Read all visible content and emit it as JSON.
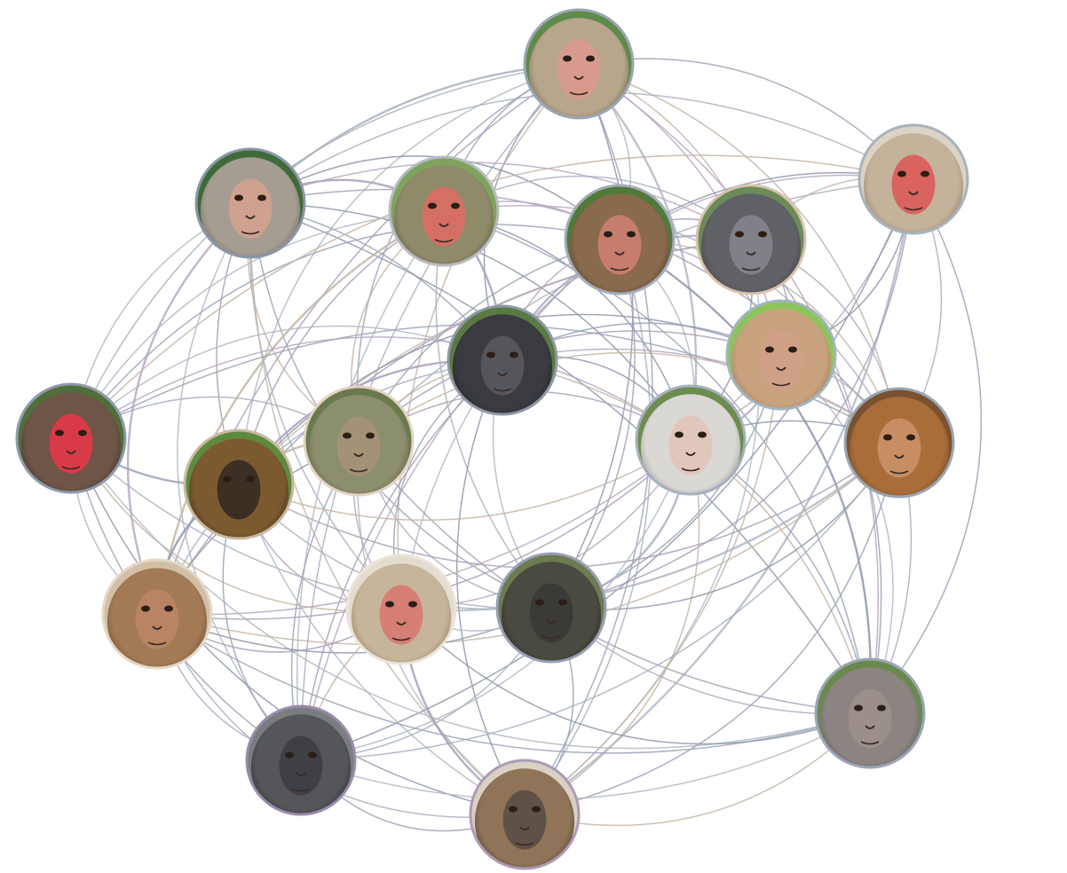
{
  "network": {
    "node_count": 19,
    "nodes": [
      {
        "id": "n1",
        "label": "",
        "fur": "#b7a68c",
        "face": "#d79a8e",
        "bg": "#5f8a4a",
        "ring": "#9aa5b2",
        "shade": "#6b5a46"
      },
      {
        "id": "n2",
        "label": "",
        "fur": "#a59d92",
        "face": "#cfa18f",
        "bg": "#3f6b3a",
        "ring": "#8a96a8",
        "shade": "#6a6258"
      },
      {
        "id": "n3",
        "label": "",
        "fur": "#8e8a6a",
        "face": "#d46f63",
        "bg": "#7fa35c",
        "ring": "#b8bcc0",
        "shade": "#5d5a45"
      },
      {
        "id": "n4",
        "label": "",
        "fur": "#8a6a4c",
        "face": "#c77d6e",
        "bg": "#4f7a3a",
        "ring": "#a4acb8",
        "shade": "#4e3c2c"
      },
      {
        "id": "n5",
        "label": "",
        "fur": "#5f6167",
        "face": "#7f8088",
        "bg": "#6d8b58",
        "ring": "#d9c2ae",
        "shade": "#3e4046"
      },
      {
        "id": "n6",
        "label": "",
        "fur": "#c4b29a",
        "face": "#d9635e",
        "bg": "#dcd3c6",
        "ring": "#a7b3bc",
        "shade": "#8a7866"
      },
      {
        "id": "n7",
        "label": "",
        "fur": "#3a3b40",
        "face": "#55565c",
        "bg": "#5a7a44",
        "ring": "#8f97a6",
        "shade": "#1f2024"
      },
      {
        "id": "n8",
        "label": "",
        "fur": "#c8a27e",
        "face": "#cf9f86",
        "bg": "#8cc45c",
        "ring": "#a2b4bf",
        "shade": "#9b7658"
      },
      {
        "id": "n9",
        "label": "",
        "fur": "#6e5548",
        "face": "#d93a48",
        "bg": "#4f6e3a",
        "ring": "#8f9aaa",
        "shade": "#3f2e24"
      },
      {
        "id": "n10",
        "label": "",
        "fur": "#8c8f6d",
        "face": "#a39277",
        "bg": "#6a7a4c",
        "ring": "#e3d3c4",
        "shade": "#5b5a42"
      },
      {
        "id": "n11",
        "label": "",
        "fur": "#7b5a30",
        "face": "#3c3024",
        "bg": "#5e8a3e",
        "ring": "#c9b8a3",
        "shade": "#3c2a18"
      },
      {
        "id": "n12",
        "label": "",
        "fur": "#d9d8d5",
        "face": "#e0c6bb",
        "bg": "#6d8c4e",
        "ring": "#a4afbd",
        "shade": "#8f8d88"
      },
      {
        "id": "n13",
        "label": "",
        "fur": "#a96d3a",
        "face": "#c78d63",
        "bg": "#7a5230",
        "ring": "#9aa5b4",
        "shade": "#6b4424"
      },
      {
        "id": "n14",
        "label": "",
        "fur": "#a27a55",
        "face": "#b98463",
        "bg": "#d2c0a6",
        "ring": "#e5d7c7",
        "shade": "#6b4d33"
      },
      {
        "id": "n15",
        "label": "",
        "fur": "#c7b59b",
        "face": "#d77f75",
        "bg": "#e4dccf",
        "ring": "#ece4da",
        "shade": "#8d7a62"
      },
      {
        "id": "n16",
        "label": "",
        "fur": "#4b4a40",
        "face": "#3a3a36",
        "bg": "#6d7a52",
        "ring": "#98a0b2",
        "shade": "#28281f"
      },
      {
        "id": "n17",
        "label": "",
        "fur": "#8b8480",
        "face": "#9a8f89",
        "bg": "#6a8a4d",
        "ring": "#9ba6b8",
        "shade": "#5c5550"
      },
      {
        "id": "n18",
        "label": "",
        "fur": "#55565a",
        "face": "#3f4045",
        "bg": "#7a7d80",
        "ring": "#9b8aaa",
        "shade": "#2c2d31"
      },
      {
        "id": "n19",
        "label": "",
        "fur": "#8f7458",
        "face": "#5e5248",
        "bg": "#d9d1c4",
        "ring": "#ad9ab6",
        "shade": "#4e3e2e"
      }
    ],
    "edge_colors": [
      "#a8b0c0",
      "#9aa3b7",
      "#b2b8c6",
      "#c4b5a4",
      "#a99db8",
      "#8f97ad",
      "#b9a7c2"
    ],
    "edges": [
      [
        "n1",
        "n2"
      ],
      [
        "n1",
        "n3"
      ],
      [
        "n1",
        "n4"
      ],
      [
        "n1",
        "n5"
      ],
      [
        "n1",
        "n6"
      ],
      [
        "n1",
        "n7"
      ],
      [
        "n1",
        "n8"
      ],
      [
        "n1",
        "n9"
      ],
      [
        "n1",
        "n10"
      ],
      [
        "n1",
        "n12"
      ],
      [
        "n1",
        "n13"
      ],
      [
        "n1",
        "n14"
      ],
      [
        "n1",
        "n16"
      ],
      [
        "n1",
        "n17"
      ],
      [
        "n1",
        "n18"
      ],
      [
        "n1",
        "n19"
      ],
      [
        "n1",
        "n11"
      ],
      [
        "n1",
        "n15"
      ],
      [
        "n2",
        "n3"
      ],
      [
        "n2",
        "n4"
      ],
      [
        "n2",
        "n5"
      ],
      [
        "n2",
        "n6"
      ],
      [
        "n2",
        "n7"
      ],
      [
        "n2",
        "n9"
      ],
      [
        "n2",
        "n10"
      ],
      [
        "n2",
        "n11"
      ],
      [
        "n2",
        "n12"
      ],
      [
        "n2",
        "n14"
      ],
      [
        "n2",
        "n15"
      ],
      [
        "n2",
        "n16"
      ],
      [
        "n2",
        "n18"
      ],
      [
        "n2",
        "n19"
      ],
      [
        "n2",
        "n13"
      ],
      [
        "n2",
        "n17"
      ],
      [
        "n3",
        "n4"
      ],
      [
        "n3",
        "n5"
      ],
      [
        "n3",
        "n7"
      ],
      [
        "n3",
        "n9"
      ],
      [
        "n3",
        "n10"
      ],
      [
        "n3",
        "n11"
      ],
      [
        "n3",
        "n12"
      ],
      [
        "n3",
        "n13"
      ],
      [
        "n3",
        "n16"
      ],
      [
        "n3",
        "n17"
      ],
      [
        "n3",
        "n18"
      ],
      [
        "n3",
        "n14"
      ],
      [
        "n4",
        "n5"
      ],
      [
        "n4",
        "n6"
      ],
      [
        "n4",
        "n7"
      ],
      [
        "n4",
        "n8"
      ],
      [
        "n4",
        "n10"
      ],
      [
        "n4",
        "n12"
      ],
      [
        "n4",
        "n13"
      ],
      [
        "n4",
        "n16"
      ],
      [
        "n4",
        "n17"
      ],
      [
        "n4",
        "n18"
      ],
      [
        "n4",
        "n19"
      ],
      [
        "n4",
        "n9"
      ],
      [
        "n4",
        "n15"
      ],
      [
        "n5",
        "n6"
      ],
      [
        "n5",
        "n8"
      ],
      [
        "n5",
        "n12"
      ],
      [
        "n5",
        "n13"
      ],
      [
        "n5",
        "n7"
      ],
      [
        "n5",
        "n17"
      ],
      [
        "n5",
        "n19"
      ],
      [
        "n5",
        "n11"
      ],
      [
        "n5",
        "n14"
      ],
      [
        "n6",
        "n8"
      ],
      [
        "n6",
        "n12"
      ],
      [
        "n6",
        "n13"
      ],
      [
        "n6",
        "n17"
      ],
      [
        "n6",
        "n19"
      ],
      [
        "n6",
        "n9"
      ],
      [
        "n6",
        "n16"
      ],
      [
        "n6",
        "n18"
      ],
      [
        "n6",
        "n7"
      ],
      [
        "n6",
        "n10"
      ],
      [
        "n7",
        "n8"
      ],
      [
        "n7",
        "n9"
      ],
      [
        "n7",
        "n10"
      ],
      [
        "n7",
        "n11"
      ],
      [
        "n7",
        "n12"
      ],
      [
        "n7",
        "n13"
      ],
      [
        "n7",
        "n14"
      ],
      [
        "n7",
        "n15"
      ],
      [
        "n7",
        "n16"
      ],
      [
        "n7",
        "n17"
      ],
      [
        "n7",
        "n18"
      ],
      [
        "n7",
        "n19"
      ],
      [
        "n8",
        "n12"
      ],
      [
        "n8",
        "n13"
      ],
      [
        "n8",
        "n16"
      ],
      [
        "n8",
        "n17"
      ],
      [
        "n8",
        "n19"
      ],
      [
        "n8",
        "n10"
      ],
      [
        "n8",
        "n11"
      ],
      [
        "n8",
        "n14"
      ],
      [
        "n9",
        "n10"
      ],
      [
        "n9",
        "n11"
      ],
      [
        "n9",
        "n14"
      ],
      [
        "n9",
        "n15"
      ],
      [
        "n9",
        "n18"
      ],
      [
        "n9",
        "n19"
      ],
      [
        "n9",
        "n12"
      ],
      [
        "n9",
        "n16"
      ],
      [
        "n9",
        "n13"
      ],
      [
        "n9",
        "n17"
      ],
      [
        "n10",
        "n11"
      ],
      [
        "n10",
        "n12"
      ],
      [
        "n10",
        "n14"
      ],
      [
        "n10",
        "n15"
      ],
      [
        "n10",
        "n16"
      ],
      [
        "n10",
        "n18"
      ],
      [
        "n10",
        "n19"
      ],
      [
        "n10",
        "n13"
      ],
      [
        "n10",
        "n17"
      ],
      [
        "n11",
        "n14"
      ],
      [
        "n11",
        "n15"
      ],
      [
        "n11",
        "n16"
      ],
      [
        "n11",
        "n18"
      ],
      [
        "n11",
        "n19"
      ],
      [
        "n11",
        "n12"
      ],
      [
        "n11",
        "n13"
      ],
      [
        "n12",
        "n13"
      ],
      [
        "n12",
        "n15"
      ],
      [
        "n12",
        "n16"
      ],
      [
        "n12",
        "n17"
      ],
      [
        "n12",
        "n18"
      ],
      [
        "n12",
        "n19"
      ],
      [
        "n12",
        "n14"
      ],
      [
        "n13",
        "n16"
      ],
      [
        "n13",
        "n17"
      ],
      [
        "n13",
        "n18"
      ],
      [
        "n13",
        "n19"
      ],
      [
        "n13",
        "n15"
      ],
      [
        "n13",
        "n14"
      ],
      [
        "n14",
        "n15"
      ],
      [
        "n14",
        "n16"
      ],
      [
        "n14",
        "n18"
      ],
      [
        "n14",
        "n19"
      ],
      [
        "n14",
        "n17"
      ],
      [
        "n15",
        "n16"
      ],
      [
        "n15",
        "n18"
      ],
      [
        "n15",
        "n19"
      ],
      [
        "n15",
        "n17"
      ],
      [
        "n16",
        "n17"
      ],
      [
        "n16",
        "n18"
      ],
      [
        "n16",
        "n19"
      ],
      [
        "n17",
        "n18"
      ],
      [
        "n17",
        "n19"
      ],
      [
        "n18",
        "n19"
      ]
    ]
  }
}
